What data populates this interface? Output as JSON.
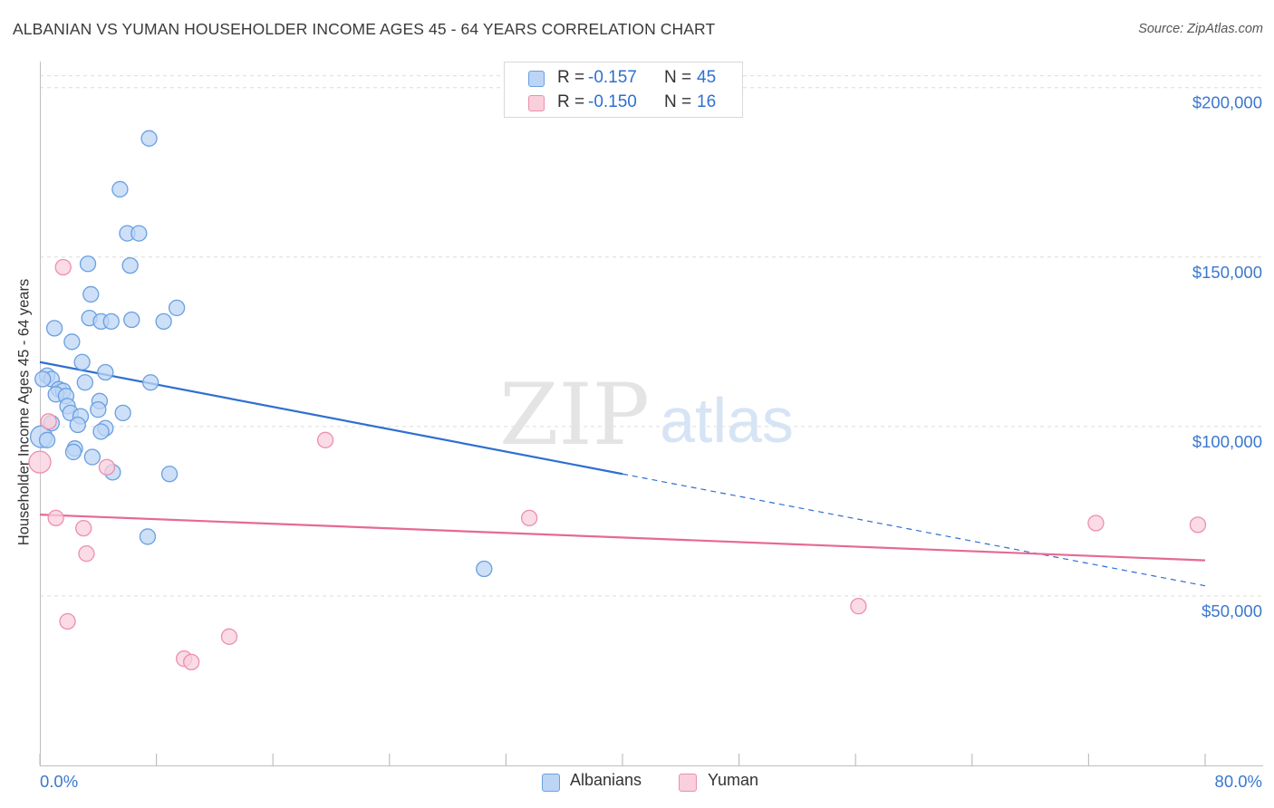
{
  "title": "ALBANIAN VS YUMAN HOUSEHOLDER INCOME AGES 45 - 64 YEARS CORRELATION CHART",
  "source": "Source: ZipAtlas.com",
  "watermark": {
    "zip": "ZIP",
    "atlas": "atlas"
  },
  "legend": {
    "rows": [
      {
        "r_label": "R =",
        "r_value": "-0.157",
        "n_label": "N =",
        "n_value": "45"
      },
      {
        "r_label": "R =",
        "r_value": "-0.150",
        "n_label": "N =",
        "n_value": "16"
      }
    ]
  },
  "bottom_legend": {
    "albanians": "Albanians",
    "yuman": "Yuman"
  },
  "colors": {
    "blue_fill": "#bcd5f5",
    "blue_stroke": "#6a9fe0",
    "blue_line": "#2f6fd0",
    "pink_fill": "#f9cfdc",
    "pink_stroke": "#ec8fae",
    "pink_line": "#e56a93",
    "tick_label": "#3a78d0",
    "grid": "#dcdcdc"
  },
  "chart_data": {
    "type": "scatter",
    "title": "ALBANIAN VS YUMAN HOUSEHOLDER INCOME AGES 45 - 64 YEARS CORRELATION CHART",
    "xlabel": "",
    "ylabel": "Householder Income Ages 45 - 64 years",
    "xlim": [
      0,
      80
    ],
    "ylim": [
      0,
      205000
    ],
    "x_tick_labels": [
      "0.0%",
      "80.0%"
    ],
    "y_ticks": [
      50000,
      100000,
      150000,
      200000
    ],
    "y_tick_labels": [
      "$50,000",
      "$100,000",
      "$150,000",
      "$200,000"
    ],
    "grid": true,
    "series": [
      {
        "name": "Albanians",
        "r": -0.157,
        "n": 45,
        "points": [
          [
            7.5,
            185000
          ],
          [
            5.5,
            170000
          ],
          [
            6.0,
            157000
          ],
          [
            6.8,
            157000
          ],
          [
            3.3,
            148000
          ],
          [
            6.2,
            147500
          ],
          [
            3.5,
            139000
          ],
          [
            9.4,
            135000
          ],
          [
            3.4,
            132000
          ],
          [
            4.2,
            131000
          ],
          [
            4.9,
            131000
          ],
          [
            6.3,
            131500
          ],
          [
            8.5,
            131000
          ],
          [
            1.0,
            129000
          ],
          [
            2.2,
            125000
          ],
          [
            2.9,
            119000
          ],
          [
            4.5,
            116000
          ],
          [
            0.5,
            115000
          ],
          [
            0.8,
            114000
          ],
          [
            3.1,
            113000
          ],
          [
            7.6,
            113000
          ],
          [
            1.3,
            111000
          ],
          [
            1.6,
            110500
          ],
          [
            1.1,
            109500
          ],
          [
            1.8,
            109000
          ],
          [
            4.1,
            107500
          ],
          [
            1.9,
            106000
          ],
          [
            2.1,
            104000
          ],
          [
            5.7,
            104000
          ],
          [
            2.8,
            103000
          ],
          [
            4.0,
            105000
          ],
          [
            2.6,
            100500
          ],
          [
            4.5,
            99500
          ],
          [
            4.2,
            98500
          ],
          [
            0.1,
            97000
          ],
          [
            0.5,
            96000
          ],
          [
            2.4,
            93500
          ],
          [
            2.3,
            92500
          ],
          [
            3.6,
            91000
          ],
          [
            5.0,
            86500
          ],
          [
            8.9,
            86000
          ],
          [
            7.4,
            67500
          ],
          [
            30.5,
            58000
          ],
          [
            0.2,
            114000
          ],
          [
            0.8,
            101000
          ]
        ]
      },
      {
        "name": "Yuman",
        "r": -0.15,
        "n": 16,
        "points": [
          [
            1.6,
            147000
          ],
          [
            0.6,
            101500
          ],
          [
            19.6,
            96000
          ],
          [
            0.0,
            89500
          ],
          [
            4.6,
            88000
          ],
          [
            1.1,
            73000
          ],
          [
            3.0,
            70000
          ],
          [
            33.6,
            73000
          ],
          [
            72.5,
            71500
          ],
          [
            79.5,
            71000
          ],
          [
            3.2,
            62500
          ],
          [
            56.2,
            47000
          ],
          [
            1.9,
            42500
          ],
          [
            13.0,
            38000
          ],
          [
            9.9,
            31500
          ],
          [
            10.4,
            30500
          ]
        ]
      }
    ],
    "trend_lines": [
      {
        "series": "Albanians",
        "x_start": 0,
        "y_start": 119000,
        "x_solid_end": 40,
        "y_solid_end": 86000,
        "x_end": 80,
        "y_end": 53000
      },
      {
        "series": "Yuman",
        "x_start": 0,
        "y_start": 74000,
        "x_end": 80,
        "y_end": 60500
      }
    ]
  }
}
